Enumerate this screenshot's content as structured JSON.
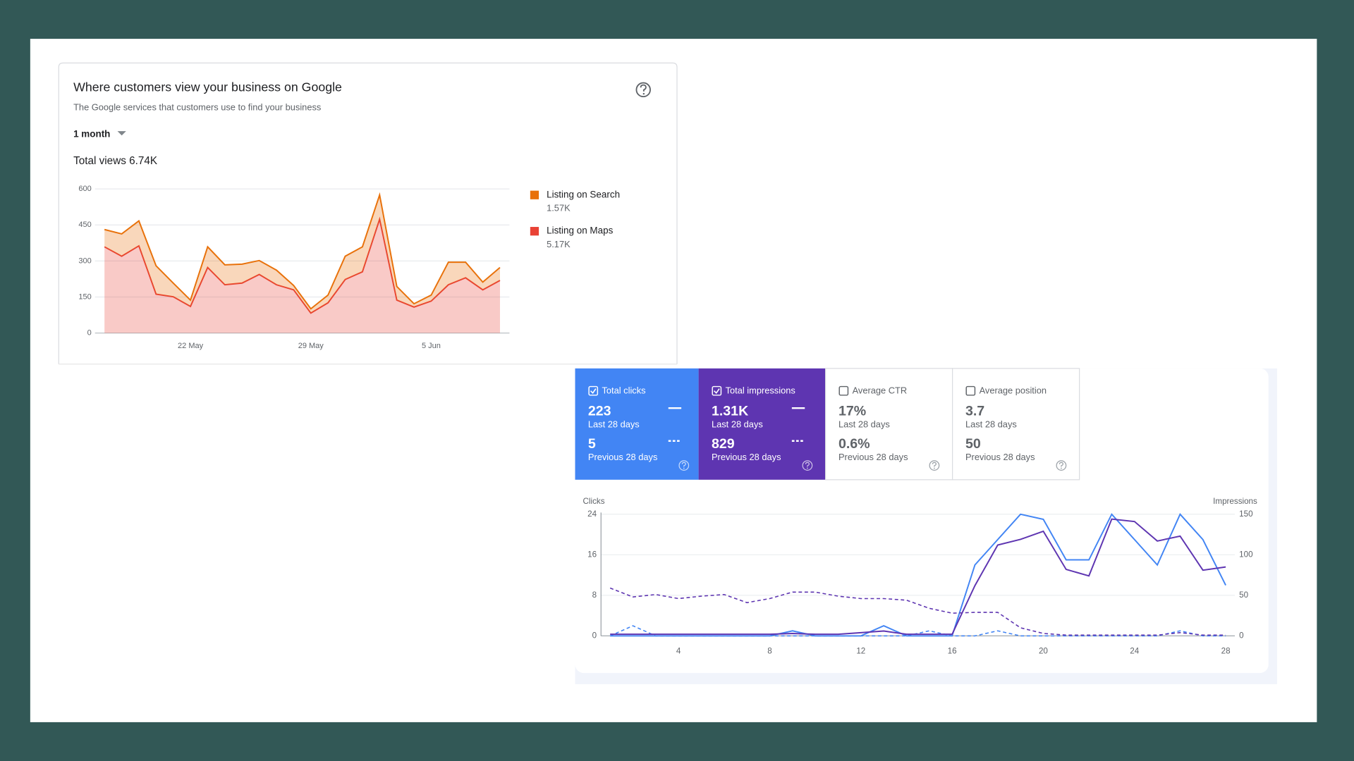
{
  "chart_data": [
    {
      "type": "area",
      "stacked": true,
      "title": "Where customers view your business on Google",
      "subtitle": "The Google services that customers use to find your business",
      "period": "1 month",
      "total": "Total views 6.74K",
      "categories": [
        null,
        null,
        null,
        null,
        null,
        "22 May",
        null,
        null,
        null,
        null,
        null,
        null,
        "29 May",
        null,
        null,
        null,
        null,
        null,
        null,
        "5 Jun",
        null,
        null,
        null,
        null
      ],
      "series": [
        {
          "name": "Listing on Search",
          "total": "1.57K",
          "color": "#e8710a",
          "values": [
            72,
            93,
            104,
            118,
            57,
            26,
            86,
            83,
            79,
            58,
            61,
            18,
            18,
            32,
            97,
            104,
            101,
            57,
            14,
            25,
            94,
            65,
            32,
            54
          ]
        },
        {
          "name": "Listing on Maps",
          "total": "5.17K",
          "color": "#e94235",
          "values": [
            359,
            320,
            363,
            162,
            151,
            111,
            273,
            201,
            208,
            244,
            201,
            180,
            83,
            126,
            223,
            255,
            474,
            137,
            108,
            133,
            201,
            230,
            180,
            219
          ]
        }
      ],
      "ylim": [
        0,
        600
      ],
      "yticks": [
        0,
        150,
        300,
        450,
        600
      ],
      "grid": true,
      "legend": "right"
    },
    {
      "type": "line",
      "ylabel": "Clicks",
      "y2label": "Impressions",
      "x": [
        1,
        2,
        3,
        4,
        5,
        6,
        7,
        8,
        9,
        10,
        11,
        12,
        13,
        14,
        15,
        16,
        17,
        18,
        19,
        20,
        21,
        22,
        23,
        24,
        25,
        26,
        27,
        28
      ],
      "xlim": [
        0.6,
        28.4
      ],
      "xticks": [
        4,
        8,
        12,
        16,
        20,
        24,
        28
      ],
      "ylim": [
        0,
        24
      ],
      "yticks": [
        0,
        8,
        16,
        24
      ],
      "y2lim": [
        0,
        150
      ],
      "y2ticks": [
        0,
        50,
        100,
        150
      ],
      "grid": true,
      "series": [
        {
          "color": "#4285f4",
          "dashed": false,
          "values": [
            0,
            0,
            0,
            0,
            0,
            0,
            0,
            0,
            1,
            0,
            0,
            0,
            2,
            0,
            0,
            0,
            14,
            19,
            24,
            23,
            15,
            15,
            24,
            19,
            14,
            24,
            19,
            10
          ]
        },
        {
          "color": "#4285f4",
          "dashed": true,
          "values": [
            0,
            2,
            0,
            0,
            0,
            0,
            0,
            0,
            0,
            0,
            0,
            0,
            0,
            0,
            1,
            0,
            0,
            1,
            0,
            0,
            0,
            0,
            0,
            0,
            0,
            1,
            0,
            0
          ]
        },
        {
          "color": "#5e35b1",
          "dashed": false,
          "axis": "y2",
          "values": [
            2,
            2,
            2,
            2,
            2,
            2,
            2,
            2,
            3,
            2,
            2,
            4,
            6,
            2,
            2,
            2,
            62,
            112,
            119,
            129,
            82,
            74,
            144,
            141,
            117,
            123,
            81,
            85
          ]
        },
        {
          "color": "#5e35b1",
          "dashed": true,
          "axis": "y2",
          "values": [
            59,
            48,
            51,
            46,
            49,
            51,
            41,
            46,
            54,
            54,
            49,
            46,
            46,
            44,
            34,
            28,
            29,
            29,
            10,
            3,
            1,
            1,
            1,
            1,
            1,
            4,
            1,
            1
          ]
        }
      ],
      "metric_cards": [
        {
          "title": "Total clicks",
          "checked": true,
          "color": "#4285f4",
          "current": "223",
          "current_label": "Last 28 days",
          "previous": "5",
          "previous_label": "Previous 28 days"
        },
        {
          "title": "Total impressions",
          "checked": true,
          "color": "#5e35b1",
          "current": "1.31K",
          "current_label": "Last 28 days",
          "previous": "829",
          "previous_label": "Previous 28 days"
        },
        {
          "title": "Average CTR",
          "checked": false,
          "color": "#ffffff",
          "current": "17%",
          "current_label": "Last 28 days",
          "previous": "0.6%",
          "previous_label": "Previous 28 days"
        },
        {
          "title": "Average position",
          "checked": false,
          "color": "#ffffff",
          "current": "3.7",
          "current_label": "Last 28 days",
          "previous": "50",
          "previous_label": "Previous 28 days"
        }
      ]
    }
  ]
}
